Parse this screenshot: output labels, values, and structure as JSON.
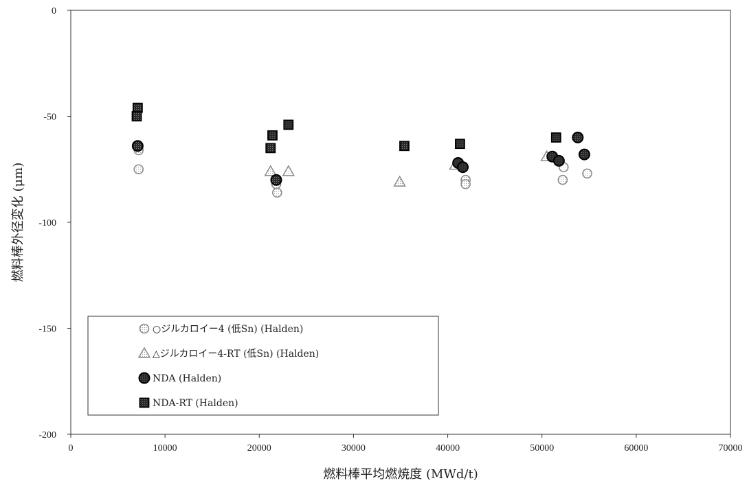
{
  "chart_data": {
    "type": "scatter",
    "title": "",
    "xlabel": "燃料棒平均燃焼度 (MWd/t)",
    "ylabel": "燃料棒外径変化 (μm)",
    "xlim": [
      0,
      70000
    ],
    "ylim": [
      -200,
      0
    ],
    "xticks": [
      0,
      10000,
      20000,
      30000,
      40000,
      50000,
      60000,
      70000
    ],
    "yticks": [
      0,
      -50,
      -100,
      -150,
      -200
    ],
    "grid": false,
    "legend_position": "bottom-left",
    "series": [
      {
        "name": "○ジルカロイー4 (低Sn) (Halden)",
        "marker": "open-circle",
        "color": "#888888",
        "points": [
          {
            "x": 7200,
            "y": -66
          },
          {
            "x": 7200,
            "y": -75
          },
          {
            "x": 21800,
            "y": -82
          },
          {
            "x": 21900,
            "y": -86
          },
          {
            "x": 41900,
            "y": -80
          },
          {
            "x": 41900,
            "y": -82
          },
          {
            "x": 52300,
            "y": -74
          },
          {
            "x": 52200,
            "y": -80
          },
          {
            "x": 54800,
            "y": -77
          }
        ]
      },
      {
        "name": "△ジルカロイー4-RT (低Sn) (Halden)",
        "marker": "open-triangle",
        "color": "#888888",
        "points": [
          {
            "x": 21200,
            "y": -76
          },
          {
            "x": 23100,
            "y": -76
          },
          {
            "x": 34900,
            "y": -81
          },
          {
            "x": 40800,
            "y": -73
          },
          {
            "x": 50500,
            "y": -69
          }
        ]
      },
      {
        "name": "NDA (Halden)",
        "marker": "filled-circle",
        "color": "#111111",
        "points": [
          {
            "x": 7100,
            "y": -64
          },
          {
            "x": 21800,
            "y": -80
          },
          {
            "x": 41100,
            "y": -72
          },
          {
            "x": 41600,
            "y": -74
          },
          {
            "x": 51100,
            "y": -69
          },
          {
            "x": 51800,
            "y": -71
          },
          {
            "x": 53800,
            "y": -60
          },
          {
            "x": 54500,
            "y": -68
          }
        ]
      },
      {
        "name": "NDA-RT (Halden)",
        "marker": "filled-square",
        "color": "#111111",
        "points": [
          {
            "x": 7100,
            "y": -46
          },
          {
            "x": 7000,
            "y": -50
          },
          {
            "x": 21400,
            "y": -59
          },
          {
            "x": 21200,
            "y": -65
          },
          {
            "x": 23100,
            "y": -54
          },
          {
            "x": 35400,
            "y": -64
          },
          {
            "x": 41300,
            "y": -63
          },
          {
            "x": 51500,
            "y": -60
          }
        ]
      }
    ]
  }
}
